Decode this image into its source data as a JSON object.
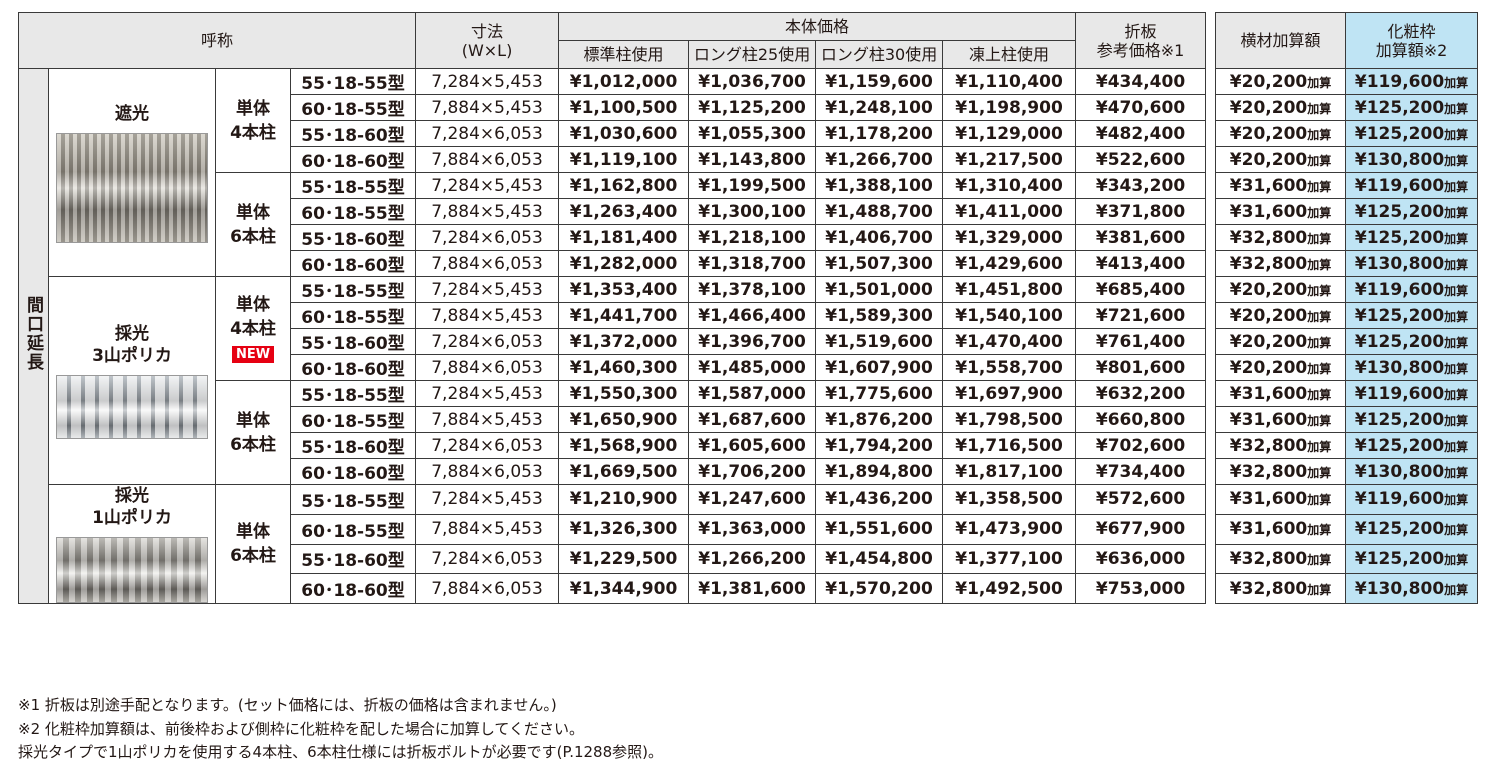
{
  "table": {
    "header": {
      "name": "呼称",
      "size": [
        "寸法",
        "(W×L)"
      ],
      "body_price": "本体価格",
      "price_columns": [
        "標準柱使用",
        "ロング柱25使用",
        "ロング柱30使用",
        "凍上柱使用"
      ],
      "folded": [
        "折板",
        "参考価格※1"
      ],
      "yokozai": "横材加算額",
      "keshou": [
        "化粧枠",
        "加算額※2"
      ]
    },
    "side_label": "間口延長",
    "suffix": "加算",
    "groups": [
      {
        "label": [
          "遮光"
        ],
        "subgroups": [
          {
            "label": [
              "単体",
              "4本柱"
            ],
            "rows": [
              [
                "55･18-55型",
                "7,284×5,453",
                "¥1,012,000",
                "¥1,036,700",
                "¥1,159,600",
                "¥1,110,400",
                "¥434,400",
                "¥20,200",
                "¥119,600"
              ],
              [
                "60･18-55型",
                "7,884×5,453",
                "¥1,100,500",
                "¥1,125,200",
                "¥1,248,100",
                "¥1,198,900",
                "¥470,600",
                "¥20,200",
                "¥125,200"
              ],
              [
                "55･18-60型",
                "7,284×6,053",
                "¥1,030,600",
                "¥1,055,300",
                "¥1,178,200",
                "¥1,129,000",
                "¥482,400",
                "¥20,200",
                "¥125,200"
              ],
              [
                "60･18-60型",
                "7,884×6,053",
                "¥1,119,100",
                "¥1,143,800",
                "¥1,266,700",
                "¥1,217,500",
                "¥522,600",
                "¥20,200",
                "¥130,800"
              ]
            ]
          },
          {
            "label": [
              "単体",
              "6本柱"
            ],
            "rows": [
              [
                "55･18-55型",
                "7,284×5,453",
                "¥1,162,800",
                "¥1,199,500",
                "¥1,388,100",
                "¥1,310,400",
                "¥343,200",
                "¥31,600",
                "¥119,600"
              ],
              [
                "60･18-55型",
                "7,884×5,453",
                "¥1,263,400",
                "¥1,300,100",
                "¥1,488,700",
                "¥1,411,000",
                "¥371,800",
                "¥31,600",
                "¥125,200"
              ],
              [
                "55･18-60型",
                "7,284×6,053",
                "¥1,181,400",
                "¥1,218,100",
                "¥1,406,700",
                "¥1,329,000",
                "¥381,600",
                "¥32,800",
                "¥125,200"
              ],
              [
                "60･18-60型",
                "7,884×6,053",
                "¥1,282,000",
                "¥1,318,700",
                "¥1,507,300",
                "¥1,429,600",
                "¥413,400",
                "¥32,800",
                "¥130,800"
              ]
            ]
          }
        ]
      },
      {
        "label": [
          "採光",
          "3山ポリカ"
        ],
        "subgroups": [
          {
            "label": [
              "単体",
              "4本柱"
            ],
            "badge": "NEW",
            "rows": [
              [
                "55･18-55型",
                "7,284×5,453",
                "¥1,353,400",
                "¥1,378,100",
                "¥1,501,000",
                "¥1,451,800",
                "¥685,400",
                "¥20,200",
                "¥119,600"
              ],
              [
                "60･18-55型",
                "7,884×5,453",
                "¥1,441,700",
                "¥1,466,400",
                "¥1,589,300",
                "¥1,540,100",
                "¥721,600",
                "¥20,200",
                "¥125,200"
              ],
              [
                "55･18-60型",
                "7,284×6,053",
                "¥1,372,000",
                "¥1,396,700",
                "¥1,519,600",
                "¥1,470,400",
                "¥761,400",
                "¥20,200",
                "¥125,200"
              ],
              [
                "60･18-60型",
                "7,884×6,053",
                "¥1,460,300",
                "¥1,485,000",
                "¥1,607,900",
                "¥1,558,700",
                "¥801,600",
                "¥20,200",
                "¥130,800"
              ]
            ]
          },
          {
            "label": [
              "単体",
              "6本柱"
            ],
            "rows": [
              [
                "55･18-55型",
                "7,284×5,453",
                "¥1,550,300",
                "¥1,587,000",
                "¥1,775,600",
                "¥1,697,900",
                "¥632,200",
                "¥31,600",
                "¥119,600"
              ],
              [
                "60･18-55型",
                "7,884×5,453",
                "¥1,650,900",
                "¥1,687,600",
                "¥1,876,200",
                "¥1,798,500",
                "¥660,800",
                "¥31,600",
                "¥125,200"
              ],
              [
                "55･18-60型",
                "7,284×6,053",
                "¥1,568,900",
                "¥1,605,600",
                "¥1,794,200",
                "¥1,716,500",
                "¥702,600",
                "¥32,800",
                "¥125,200"
              ],
              [
                "60･18-60型",
                "7,884×6,053",
                "¥1,669,500",
                "¥1,706,200",
                "¥1,894,800",
                "¥1,817,100",
                "¥734,400",
                "¥32,800",
                "¥130,800"
              ]
            ]
          }
        ]
      },
      {
        "label": [
          "採光",
          "1山ポリカ"
        ],
        "subgroups": [
          {
            "label": [
              "単体",
              "6本柱"
            ],
            "rows": [
              [
                "55･18-55型",
                "7,284×5,453",
                "¥1,210,900",
                "¥1,247,600",
                "¥1,436,200",
                "¥1,358,500",
                "¥572,600",
                "¥31,600",
                "¥119,600"
              ],
              [
                "60･18-55型",
                "7,884×5,453",
                "¥1,326,300",
                "¥1,363,000",
                "¥1,551,600",
                "¥1,473,900",
                "¥677,900",
                "¥31,600",
                "¥125,200"
              ],
              [
                "55･18-60型",
                "7,284×6,053",
                "¥1,229,500",
                "¥1,266,200",
                "¥1,454,800",
                "¥1,377,100",
                "¥636,000",
                "¥32,800",
                "¥125,200"
              ],
              [
                "60･18-60型",
                "7,884×6,053",
                "¥1,344,900",
                "¥1,381,600",
                "¥1,570,200",
                "¥1,492,500",
                "¥753,000",
                "¥32,800",
                "¥130,800"
              ]
            ]
          }
        ]
      }
    ]
  },
  "notes": [
    "※1 折板は別途手配となります。(セット価格には、折板の価格は含まれません。)",
    "※2 化粧枠加算額は、前後枠および側枠に化粧枠を配した場合に加算してください。",
    "採光タイプで1山ポリカを使用する4本柱、6本柱仕様には折板ボルトが必要です(P.1288参照)。"
  ]
}
